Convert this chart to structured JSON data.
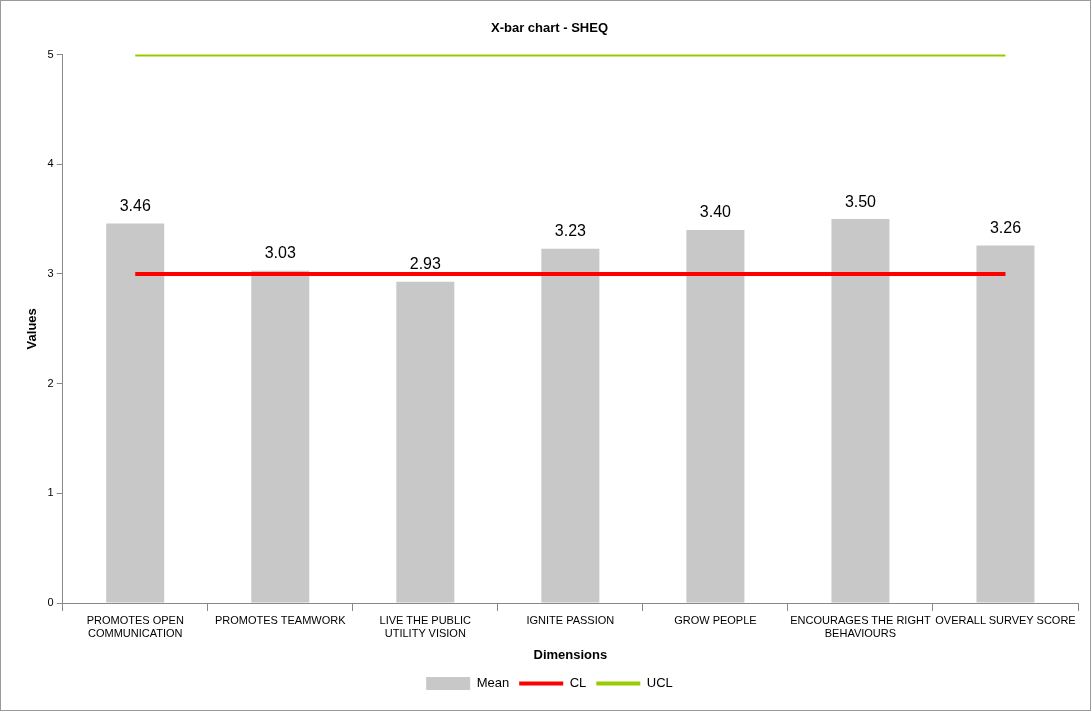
{
  "chart_data": {
    "type": "bar",
    "title": "X-bar chart - SHEQ",
    "xlabel": "Dimensions",
    "ylabel": "Values",
    "categories": [
      "PROMOTES OPEN COMMUNICATION",
      "PROMOTES TEAMWORK",
      "LIVE THE PUBLIC UTILITY VISION",
      "IGNITE PASSION",
      "GROW PEOPLE",
      "ENCOURAGES THE RIGHT BEHAVIOURS",
      "OVERALL SURVEY SCORE"
    ],
    "series": [
      {
        "name": "Mean",
        "color": "#c8c8c8",
        "values": [
          3.46,
          3.03,
          2.93,
          3.23,
          3.4,
          3.5,
          3.26
        ],
        "value_labels": [
          "3.46",
          "3.03",
          "2.93",
          "3.23",
          "3.40",
          "3.50",
          "3.26"
        ]
      },
      {
        "name": "CL",
        "type": "line",
        "color": "#ff0000",
        "values": [
          3,
          3,
          3,
          3,
          3,
          3,
          3
        ]
      },
      {
        "name": "UCL",
        "type": "line",
        "color": "#99cc00",
        "values": [
          5,
          5,
          5,
          5,
          5,
          5,
          5
        ]
      }
    ],
    "ylim": [
      0,
      5
    ],
    "yticks": [
      0,
      1,
      2,
      3,
      4,
      5
    ],
    "grid": false,
    "legend": "bottom",
    "marker": "none",
    "line_style": "solid"
  }
}
